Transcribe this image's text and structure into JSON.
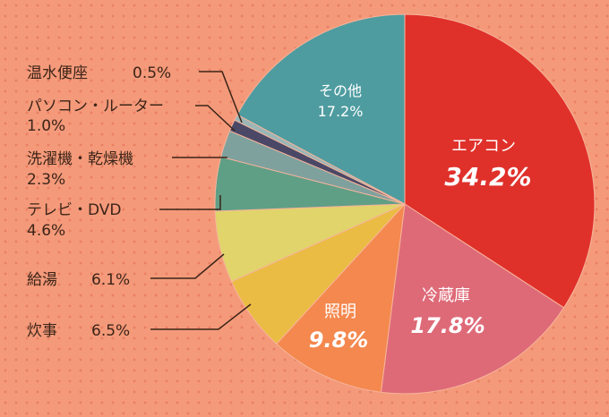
{
  "chart_data": {
    "type": "pie",
    "start": "top",
    "direction": "clockwise",
    "slices": [
      {
        "name": "エアコン",
        "value": 34.2,
        "label": "34.2%",
        "color": "#e0302a"
      },
      {
        "name": "冷蔵庫",
        "value": 17.8,
        "label": "17.8%",
        "color": "#de6a78"
      },
      {
        "name": "照明",
        "value": 9.8,
        "label": "9.8%",
        "color": "#f4884e"
      },
      {
        "name": "炊事",
        "value": 6.5,
        "label": "6.5%",
        "color": "#ebbc44"
      },
      {
        "name": "給湯",
        "value": 6.1,
        "label": "6.1%",
        "color": "#e0d46a"
      },
      {
        "name": "テレビ・DVD",
        "value": 4.6,
        "label": "4.6%",
        "color": "#5f9f86"
      },
      {
        "name": "洗濯機・乾燥機",
        "value": 2.3,
        "label": "2.3%",
        "color": "#7fa19e"
      },
      {
        "name": "パソコン・ルーター",
        "value": 1.0,
        "label": "1.0%",
        "color": "#4a4866"
      },
      {
        "name": "温水便座",
        "value": 0.5,
        "label": "0.5%",
        "color": "#9ab6b6"
      },
      {
        "name": "その他",
        "value": 17.2,
        "label": "17.2%",
        "color": "#4e9ca0"
      }
    ]
  }
}
